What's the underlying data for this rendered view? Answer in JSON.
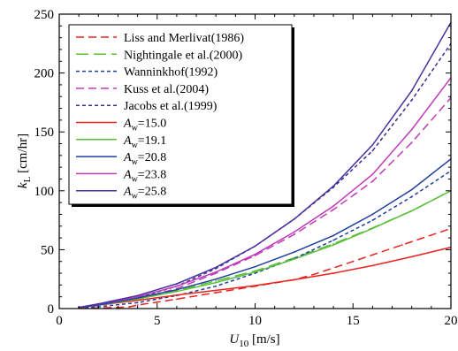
{
  "chart_data": {
    "type": "line",
    "x_axis": {
      "label_main": "U",
      "label_sub": "10",
      "label_unit": " [m/s]",
      "range": [
        0,
        20
      ],
      "ticks": [
        0,
        5,
        10,
        15,
        20
      ],
      "tick_labels": [
        "0",
        "5",
        "10",
        "15",
        "20"
      ]
    },
    "y_axis": {
      "label_main": "k",
      "label_sub": "L",
      "label_unit": " [cm/hr]",
      "range": [
        0,
        250
      ],
      "ticks": [
        0,
        50,
        100,
        150,
        200,
        250
      ],
      "tick_labels": [
        "0",
        "50",
        "100",
        "150",
        "200",
        "250"
      ]
    },
    "grid": false,
    "legend_position": "top-left",
    "series": [
      {
        "name": "Liss and Merlivat(1986)",
        "label_type": "plain",
        "color": "#e8231f",
        "dash": "long",
        "x": [
          1,
          2,
          3,
          3.6,
          4,
          5,
          6,
          8,
          10,
          12,
          13,
          15,
          17.5,
          20
        ],
        "y": [
          0,
          0.5,
          1,
          1.5,
          3,
          5.5,
          8,
          13.5,
          19,
          24.5,
          29,
          40,
          54,
          68
        ]
      },
      {
        "name": "Nightingale et al.(2000)",
        "label_type": "plain",
        "color": "#5cbf3a",
        "dash": "longer",
        "x": [
          1,
          2,
          4,
          6,
          8,
          10,
          12,
          14,
          16,
          18,
          20
        ],
        "y": [
          1,
          3,
          8,
          15,
          23.5,
          32,
          43,
          55,
          68.5,
          83,
          100
        ]
      },
      {
        "name": "Wanninkhof(1992)",
        "label_type": "plain",
        "color": "#1f3f9e",
        "dash": "short",
        "x": [
          1,
          2,
          4,
          6,
          8,
          10,
          12,
          14,
          16,
          18,
          20
        ],
        "y": [
          0.5,
          1.5,
          5,
          11,
          19,
          30,
          42.5,
          58,
          75,
          95,
          117
        ]
      },
      {
        "name": "Kuss et al.(2004)",
        "label_type": "plain",
        "color": "#c03ab8",
        "dash": "long",
        "x": [
          1,
          2,
          4,
          6,
          8,
          10,
          12,
          14,
          16,
          18,
          20
        ],
        "y": [
          1,
          2.5,
          8,
          17,
          30,
          45,
          63,
          84,
          108,
          141,
          179
        ]
      },
      {
        "name": "Jacobs et al.(1999)",
        "label_type": "plain",
        "color": "#3a2f8c",
        "dash": "short",
        "x": [
          1,
          2,
          4,
          6,
          8,
          10,
          12,
          14,
          16,
          18,
          20
        ],
        "y": [
          1,
          3,
          9,
          19,
          34,
          53,
          76,
          103,
          134,
          177,
          225
        ]
      },
      {
        "name": "15.0",
        "label_type": "aw",
        "color": "#e8231f",
        "dash": "solid",
        "x": [
          1,
          2,
          4,
          6,
          8,
          10,
          12,
          14,
          16,
          18,
          20
        ],
        "y": [
          1,
          3,
          7,
          11.5,
          15.5,
          19.5,
          24.5,
          30,
          36.5,
          44,
          52
        ]
      },
      {
        "name": "19.1",
        "label_type": "aw",
        "color": "#5cbf3a",
        "dash": "solid",
        "x": [
          1,
          2,
          4,
          6,
          8,
          10,
          12,
          14,
          16,
          18,
          20
        ],
        "y": [
          1,
          3,
          8,
          14.5,
          22,
          31,
          42,
          54,
          68,
          83,
          100
        ]
      },
      {
        "name": "20.8",
        "label_type": "aw",
        "color": "#1f3f9e",
        "dash": "solid",
        "x": [
          1,
          2,
          4,
          6,
          8,
          10,
          12,
          14,
          16,
          18,
          20
        ],
        "y": [
          1,
          3,
          9,
          16,
          25,
          35.5,
          48,
          62,
          80,
          101,
          127
        ]
      },
      {
        "name": "23.8",
        "label_type": "aw",
        "color": "#c03ab8",
        "dash": "solid",
        "x": [
          1,
          2,
          4,
          6,
          8,
          10,
          12,
          14,
          16,
          18,
          20
        ],
        "y": [
          1,
          4,
          10,
          19,
          31,
          46,
          65,
          87,
          114,
          152,
          196
        ]
      },
      {
        "name": "25.8",
        "label_type": "aw",
        "color": "#4a2fa0",
        "dash": "solid",
        "x": [
          1,
          2,
          4,
          6,
          8,
          10,
          12,
          14,
          16,
          18,
          20
        ],
        "y": [
          1,
          4,
          11,
          21,
          35,
          53,
          76,
          104,
          139,
          185,
          243
        ]
      }
    ],
    "legend_label_prefix": {
      "main": "A",
      "sub": "w",
      "sep": "="
    }
  }
}
